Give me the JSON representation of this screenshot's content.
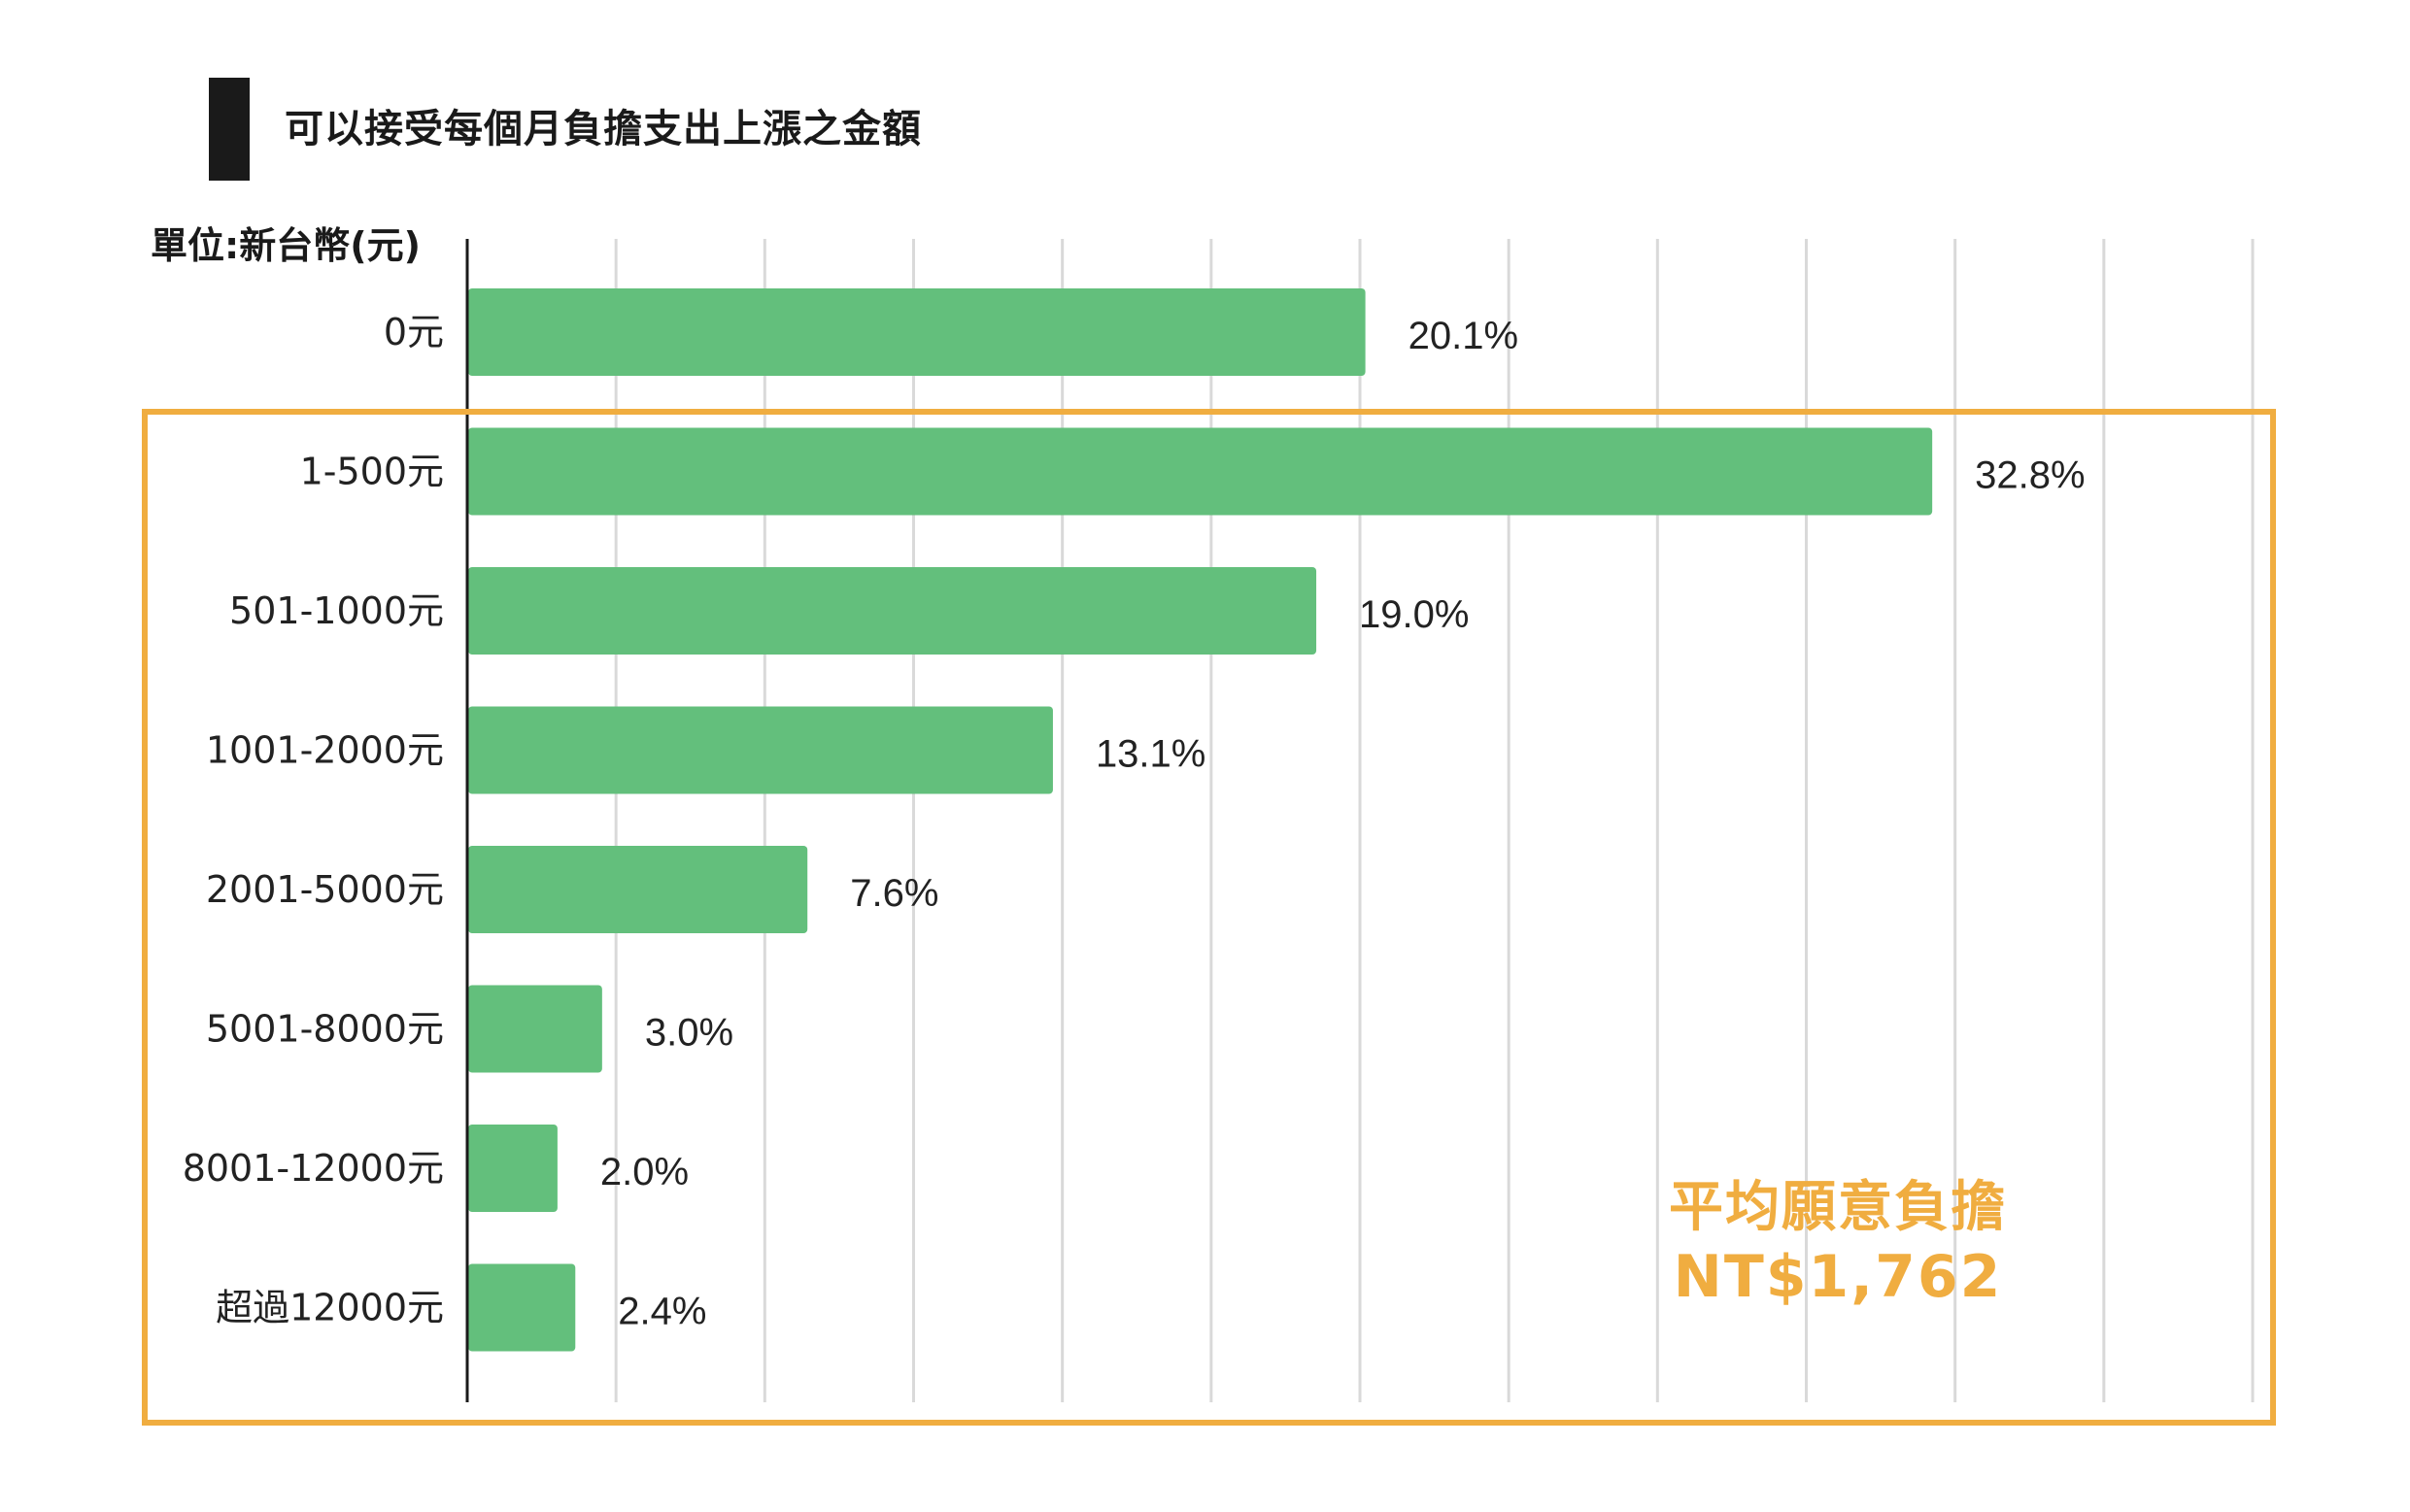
{
  "chart_data": {
    "type": "bar",
    "orientation": "horizontal",
    "title": "可以接受每個月負擔支出上漲之金額",
    "unit_label": "單位:新台幣(元)",
    "categories": [
      "0元",
      "1-500元",
      "501-1000元",
      "1001-2000元",
      "2001-5000元",
      "5001-8000元",
      "8001-12000元",
      "超過12000元"
    ],
    "values": [
      20.1,
      32.8,
      19.0,
      13.1,
      7.6,
      3.0,
      2.0,
      2.4
    ],
    "value_labels": [
      "20.1%",
      "32.8%",
      "19.0%",
      "13.1%",
      "7.6%",
      "3.0%",
      "2.0%",
      "2.4%"
    ],
    "xlim": [
      0,
      40
    ],
    "gridlines": "vertical",
    "bar_color": "#63bf7c",
    "highlight_color": "#f0ad40",
    "highlight_range": [
      "1-500元",
      "超過12000元"
    ],
    "annotation": {
      "line1": "平均願意負擔",
      "line2": "NT$1,762"
    }
  }
}
